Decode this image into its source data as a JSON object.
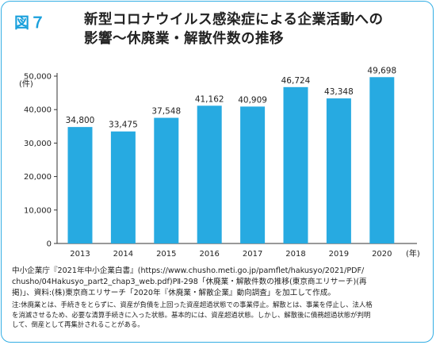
{
  "figure": {
    "label": "図７",
    "title_line1": "新型コロナウイルス感染症による企業活動への",
    "title_line2": "影響～休廃業・解散件数の推移"
  },
  "chart_data": {
    "type": "bar",
    "title": "新型コロナウイルス感染症による企業活動への影響～休廃業・解散件数の推移",
    "categories": [
      "2013",
      "2014",
      "2015",
      "2016",
      "2017",
      "2018",
      "2019",
      "2020"
    ],
    "values": [
      34800,
      33475,
      37548,
      41162,
      40909,
      46724,
      43348,
      49698
    ],
    "value_labels": [
      "34,800",
      "33,475",
      "37,548",
      "41,162",
      "40,909",
      "46,724",
      "43,348",
      "49,698"
    ],
    "ylabel": "(件)",
    "xlabel": "(年)",
    "ylim": [
      0,
      50000
    ],
    "yticks": [
      0,
      10000,
      20000,
      30000,
      40000,
      50000
    ],
    "ytick_labels": [
      "0",
      "10,000",
      "20,000",
      "30,000",
      "40,000",
      "50,000"
    ],
    "grid": false,
    "colors": {
      "bar": "#27aae1",
      "axis": "#333333"
    }
  },
  "source": {
    "line1": "中小企業庁『2021年中小企業白書』(https://www.chusho.meti.go.jp/pamflet/hakusyo/2021/PDF/",
    "line2": "chusho/04Hakusyo_part2_chap3_web.pdf)PⅡ-298「休廃業・解散件数の推移(東京商エリサーチ)(再",
    "line3": "掲)」、資料:(株)東京商エリサーチ「2020年『休廃業・解散企業』動向調査」を加工して作成。"
  },
  "note": {
    "line1": "注:休廃業とは、手続きをとらずに、資産が負債を上回った資産超過状態での事業停止。解散とは、事業を停止し、法人格",
    "line2": "を消滅させるため、必要な清算手続きに入った状態。基本的には、資産超過状態。しかし、解散後に債務超過状態が判明",
    "line3": "して、倒産として再集計されることがある。"
  },
  "colors": {
    "frame": "#33aee4",
    "accent": "#1aa0dc"
  }
}
